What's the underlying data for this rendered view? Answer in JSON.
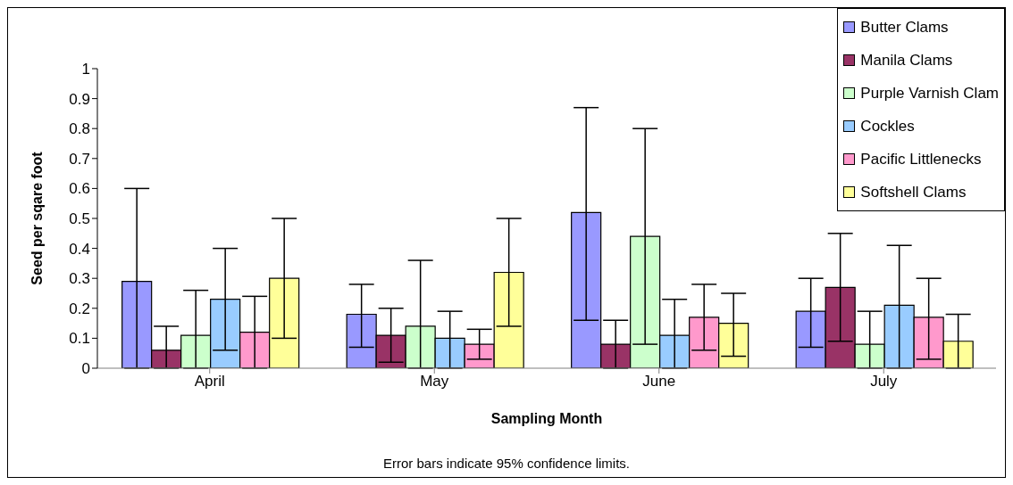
{
  "chart_data": {
    "type": "bar",
    "xlabel": "Sampling Month",
    "ylabel": "Seed per sqare foot",
    "categories": [
      "April",
      "May",
      "June",
      "July"
    ],
    "ylim": [
      0,
      1
    ],
    "yticks": [
      0,
      0.1,
      0.2,
      0.3,
      0.4,
      0.5,
      0.6,
      0.7,
      0.8,
      0.9,
      1
    ],
    "legend": "top right",
    "series": [
      {
        "name": "Butter Clams",
        "color": "#9999ff",
        "values": [
          0.29,
          0.18,
          0.52,
          0.19
        ],
        "errors": [
          [
            0,
            0.6
          ],
          [
            0.07,
            0.28
          ],
          [
            0.16,
            0.87
          ],
          [
            0.07,
            0.3
          ]
        ]
      },
      {
        "name": "Manila Clams",
        "color": "#993366",
        "values": [
          0.06,
          0.11,
          0.08,
          0.27
        ],
        "errors": [
          [
            0,
            0.14
          ],
          [
            0.02,
            0.2
          ],
          [
            0,
            0.16
          ],
          [
            0.09,
            0.45
          ]
        ]
      },
      {
        "name": "Purple Varnish Clam",
        "color": "#ccffcc",
        "values": [
          0.11,
          0.14,
          0.44,
          0.08
        ],
        "errors": [
          [
            0,
            0.26
          ],
          [
            0,
            0.36
          ],
          [
            0.08,
            0.8
          ],
          [
            0,
            0.19
          ]
        ]
      },
      {
        "name": "Cockles",
        "color": "#99ccff",
        "values": [
          0.23,
          0.1,
          0.11,
          0.21
        ],
        "errors": [
          [
            0.06,
            0.4
          ],
          [
            0,
            0.19
          ],
          [
            0,
            0.23
          ],
          [
            0,
            0.41
          ]
        ]
      },
      {
        "name": "Pacific Littlenecks",
        "color": "#ff99cc",
        "values": [
          0.12,
          0.08,
          0.17,
          0.17
        ],
        "errors": [
          [
            0,
            0.24
          ],
          [
            0.03,
            0.13
          ],
          [
            0.06,
            0.28
          ],
          [
            0.03,
            0.3
          ]
        ]
      },
      {
        "name": "Softshell Clams",
        "color": "#ffff99",
        "values": [
          0.3,
          0.32,
          0.15,
          0.09
        ],
        "errors": [
          [
            0.1,
            0.5
          ],
          [
            0.14,
            0.5
          ],
          [
            0.04,
            0.25
          ],
          [
            0,
            0.18
          ]
        ]
      }
    ],
    "annotations": [
      "Error bars indicate 95% confidence limits."
    ]
  }
}
